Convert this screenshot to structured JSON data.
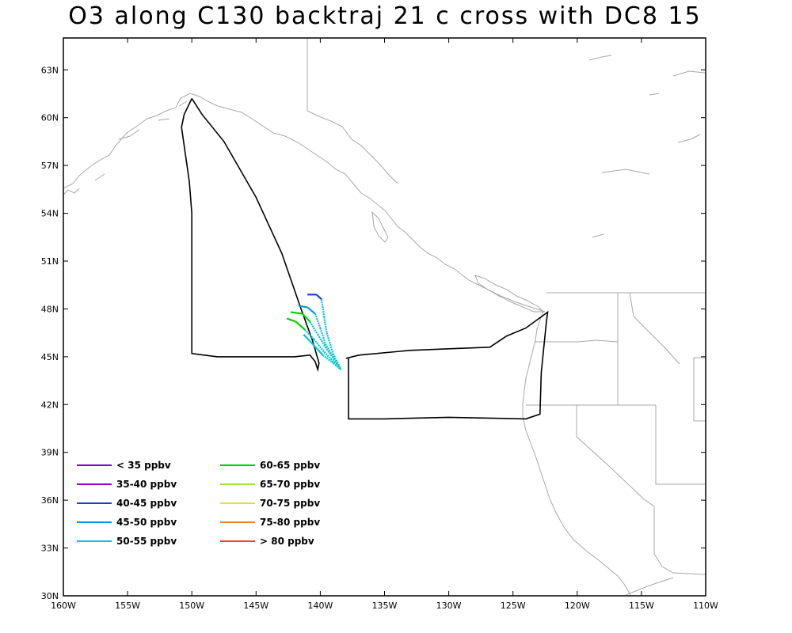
{
  "title": "O3 along C130 backtraj 21 c cross with DC8 15",
  "chart_data": {
    "type": "map",
    "xlim": [
      -160,
      -110
    ],
    "ylim": [
      30,
      65
    ],
    "lon_ticks": [
      {
        "value": -160,
        "label": "160W"
      },
      {
        "value": -155,
        "label": "155W"
      },
      {
        "value": -150,
        "label": "150W"
      },
      {
        "value": -145,
        "label": "145W"
      },
      {
        "value": -140,
        "label": "140W"
      },
      {
        "value": -135,
        "label": "135W"
      },
      {
        "value": -130,
        "label": "130W"
      },
      {
        "value": -125,
        "label": "125W"
      },
      {
        "value": -120,
        "label": "120W"
      },
      {
        "value": -115,
        "label": "115W"
      },
      {
        "value": -110,
        "label": "110W"
      }
    ],
    "lat_ticks": [
      {
        "value": 30,
        "label": "30N"
      },
      {
        "value": 33,
        "label": "33N"
      },
      {
        "value": 36,
        "label": "36N"
      },
      {
        "value": 39,
        "label": "39N"
      },
      {
        "value": 42,
        "label": "42N"
      },
      {
        "value": 45,
        "label": "45N"
      },
      {
        "value": 48,
        "label": "48N"
      },
      {
        "value": 51,
        "label": "51N"
      },
      {
        "value": 54,
        "label": "54N"
      },
      {
        "value": 57,
        "label": "57N"
      },
      {
        "value": 60,
        "label": "60N"
      },
      {
        "value": 63,
        "label": "63N"
      }
    ],
    "legend": [
      {
        "label": "< 35 ppbv",
        "color": "#8a00c8"
      },
      {
        "label": "35-40 ppbv",
        "color": "#9a00d0"
      },
      {
        "label": "40-45 ppbv",
        "color": "#1e3cdc"
      },
      {
        "label": "45-50 ppbv",
        "color": "#0a96e6"
      },
      {
        "label": "50-55 ppbv",
        "color": "#00c8d2"
      },
      {
        "label": "60-65 ppbv",
        "color": "#00d200"
      },
      {
        "label": "65-70 ppbv",
        "color": "#a0e632"
      },
      {
        "label": "70-75 ppbv",
        "color": "#e6dc32"
      },
      {
        "label": "75-80 ppbv",
        "color": "#f08228"
      },
      {
        "label": "> 80 ppbv",
        "color": "#fa3c3c"
      }
    ],
    "flight_track_dc8": [
      [
        -150.0,
        61.2
      ],
      [
        -150.6,
        60.2
      ],
      [
        -150.8,
        59.4
      ],
      [
        -150.2,
        56.0
      ],
      [
        -150.0,
        54.0
      ],
      [
        -150.0,
        45.2
      ],
      [
        -148.0,
        45.0
      ],
      [
        -145.0,
        45.0
      ],
      [
        -142.0,
        45.0
      ],
      [
        -140.8,
        45.1
      ],
      [
        -140.4,
        44.7
      ],
      [
        -140.2,
        44.2
      ],
      [
        -140.1,
        44.6
      ],
      [
        -140.6,
        46.0
      ],
      [
        -141.5,
        48.0
      ],
      [
        -143.0,
        51.5
      ],
      [
        -145.0,
        55.0
      ],
      [
        -147.5,
        58.5
      ],
      [
        -149.2,
        60.2
      ],
      [
        -150.0,
        61.2
      ]
    ],
    "flight_track_c130": [
      [
        -138.0,
        44.9
      ],
      [
        -137.0,
        45.1
      ],
      [
        -133.0,
        45.4
      ],
      [
        -130.0,
        45.5
      ],
      [
        -126.8,
        45.6
      ],
      [
        -125.5,
        46.3
      ],
      [
        -124.0,
        46.8
      ],
      [
        -122.3,
        47.8
      ],
      [
        -122.4,
        47.2
      ],
      [
        -122.8,
        44.0
      ],
      [
        -122.9,
        41.4
      ],
      [
        -124.0,
        41.1
      ],
      [
        -130.0,
        41.2
      ],
      [
        -135.0,
        41.1
      ],
      [
        -137.8,
        41.1
      ],
      [
        -137.8,
        44.9
      ]
    ],
    "back_trajectories": [
      {
        "color_range": "40-45 ppbv",
        "points": [
          [
            -141.0,
            48.9
          ],
          [
            -140.3,
            48.9
          ],
          [
            -139.9,
            48.6
          ],
          [
            -139.7,
            47.5
          ],
          [
            -139.5,
            46.5
          ],
          [
            -139.0,
            45.2
          ],
          [
            -138.4,
            44.2
          ]
        ]
      },
      {
        "color_range": "45-50 ppbv",
        "points": [
          [
            -141.7,
            48.2
          ],
          [
            -141.0,
            48.1
          ],
          [
            -140.4,
            47.7
          ],
          [
            -140.0,
            46.8
          ],
          [
            -139.6,
            45.8
          ],
          [
            -138.4,
            44.2
          ]
        ]
      },
      {
        "color_range": "60-65 ppbv",
        "points": [
          [
            -142.3,
            47.8
          ],
          [
            -141.4,
            47.7
          ],
          [
            -140.8,
            47.2
          ],
          [
            -140.2,
            46.4
          ],
          [
            -139.6,
            45.6
          ],
          [
            -138.4,
            44.2
          ]
        ]
      },
      {
        "color_range": "60-65 ppbv",
        "points": [
          [
            -142.6,
            47.4
          ],
          [
            -141.9,
            47.2
          ],
          [
            -141.2,
            46.7
          ],
          [
            -140.5,
            46.1
          ],
          [
            -139.7,
            45.3
          ],
          [
            -138.4,
            44.2
          ]
        ]
      },
      {
        "color_range": "50-55 ppbv",
        "points": [
          [
            -141.3,
            46.4
          ],
          [
            -140.6,
            45.8
          ],
          [
            -139.8,
            45.1
          ],
          [
            -139.0,
            44.6
          ],
          [
            -138.4,
            44.2
          ]
        ]
      }
    ],
    "grid": false,
    "legend_placement": "bottom-left"
  }
}
